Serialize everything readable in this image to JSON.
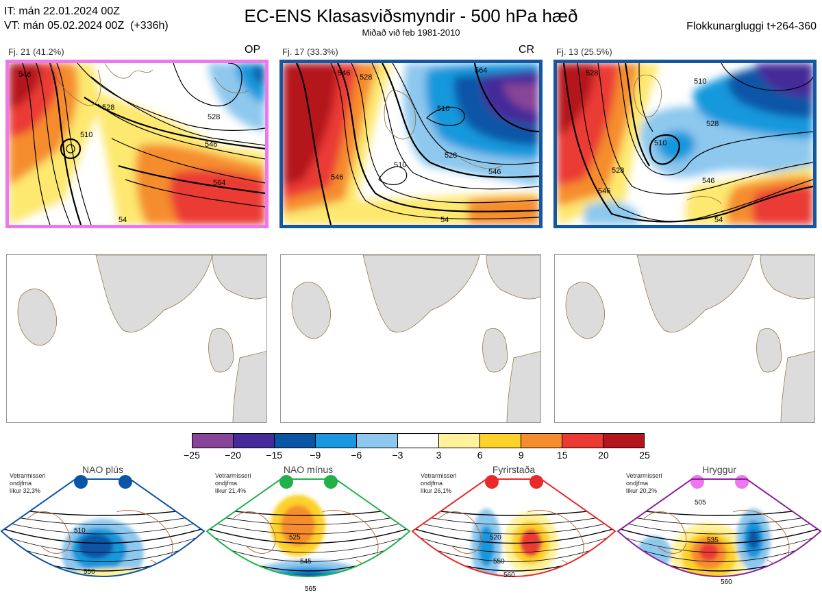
{
  "header": {
    "init_time": "IT: mán 22.01.2024 00Z",
    "valid_time": "VT: mán 05.02.2024 00Z  (+336h)",
    "title": "EC-ENS Klasasviðsmyndir - 500 hPa hæð",
    "subtitle": "Miðað við feb 1981-2010",
    "window": "Flokkunargluggi t+264-360"
  },
  "clusters": [
    {
      "label": "Fj. 21 (41.2%)",
      "tag": "OP",
      "frame_color": "#ee77ee",
      "contour_labels": [
        "546",
        "528",
        "510",
        "546",
        "564",
        "528",
        "54"
      ]
    },
    {
      "label": "Fj. 17 (33.3%)",
      "tag": "CR",
      "frame_color": "#1456a0",
      "contour_labels": [
        "546",
        "528",
        "510",
        "510",
        "528",
        "546",
        "564",
        "546",
        "54"
      ]
    },
    {
      "label": "Fj. 13 (25.5%)",
      "tag": "",
      "frame_color": "#1456a0",
      "contour_labels": [
        "528",
        "510",
        "528",
        "510",
        "528",
        "546",
        "546",
        "54"
      ]
    }
  ],
  "colorbar": {
    "ticks": [
      "−25",
      "−20",
      "−15",
      "−9",
      "−6",
      "−3",
      "3",
      "6",
      "9",
      "15",
      "20",
      "25"
    ],
    "colors": [
      "#884499",
      "#442b99",
      "#0b55a6",
      "#1998dd",
      "#8ec8ee",
      "#ffffff",
      "#fff29a",
      "#fdd22a",
      "#f58d2e",
      "#ea3a34",
      "#b4141c"
    ]
  },
  "regimes": [
    {
      "name": "NAO plús",
      "meta": "Vetrarmisseri\nondjfma\nlíkur 32,3%",
      "dot_color": "#0b55a6",
      "border_color": "#0b55a6",
      "contour_labels": [
        "510",
        "550"
      ]
    },
    {
      "name": "NAO mínus",
      "meta": "Vetrarmisseri\nondjfma\nlíkur 21,4%",
      "dot_color": "#22b04a",
      "border_color": "#22b04a",
      "contour_labels": [
        "525",
        "545",
        "565"
      ]
    },
    {
      "name": "Fyrirstaða",
      "meta": "Vetrarmisseri\nondjfma\nlíkur 26,1%",
      "dot_color": "#ea2a2a",
      "border_color": "#ea2a2a",
      "contour_labels": [
        "520",
        "550",
        "560"
      ]
    },
    {
      "name": "Hryggur",
      "meta": "Vetrarmisseri\nondjfma\nlíkur 20,2%",
      "dot_color": "#ee77ee",
      "border_color": "#882299",
      "contour_labels": [
        "505",
        "535",
        "560"
      ]
    }
  ]
}
